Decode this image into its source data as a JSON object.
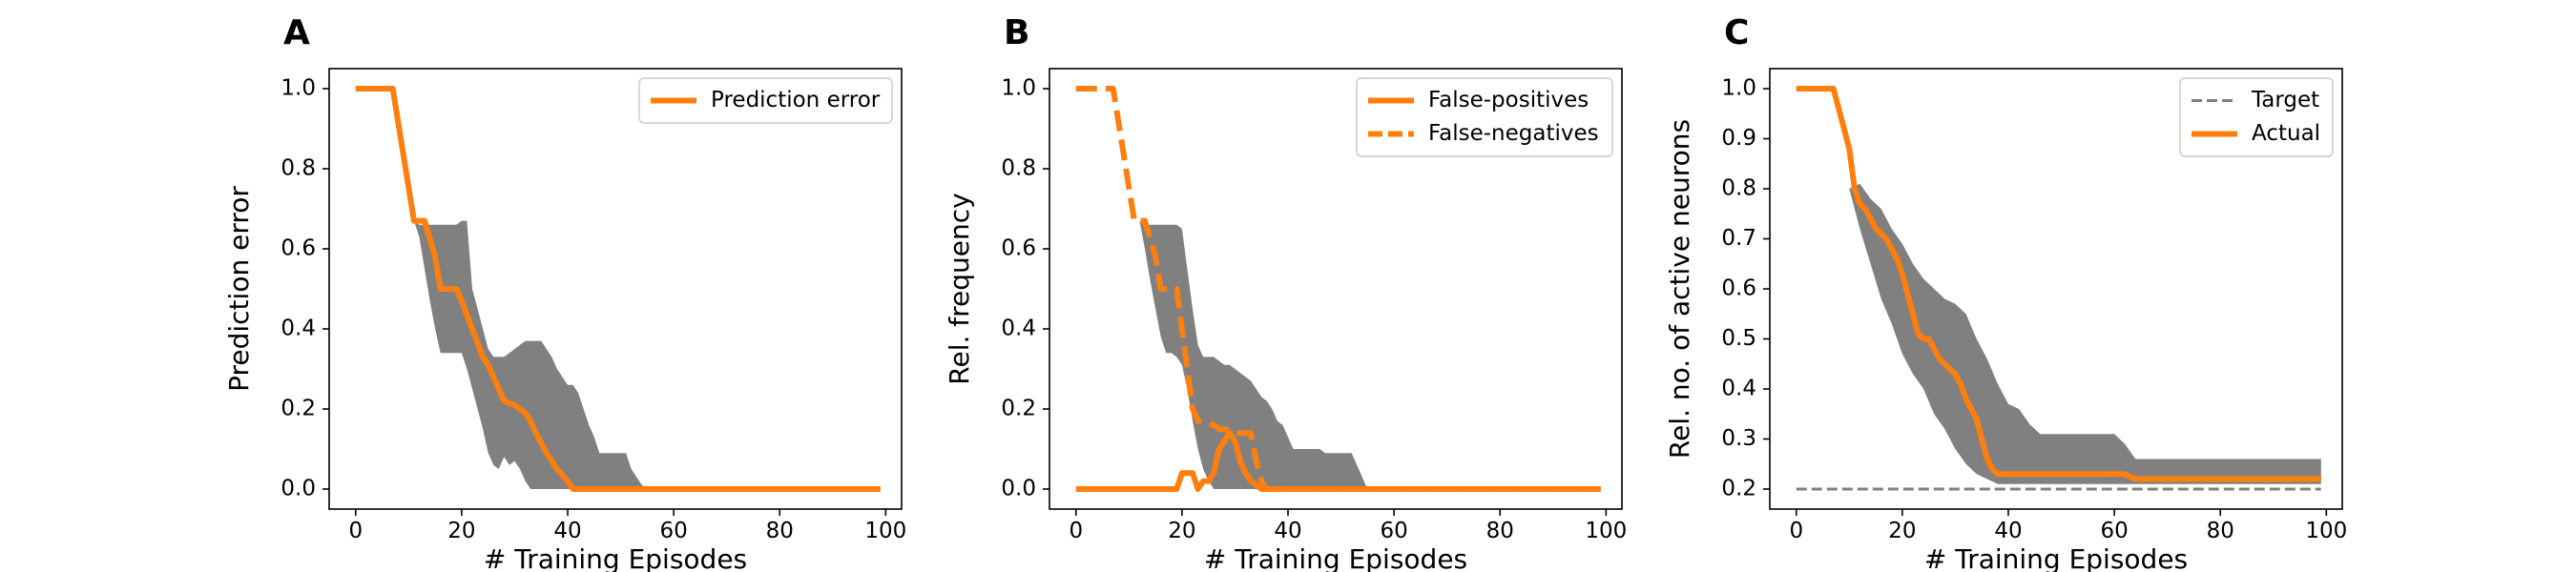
{
  "colors": {
    "accent": "#ff7f0e",
    "band": "#808080",
    "target": "#808080",
    "axis": "#000000"
  },
  "chart_data": [
    {
      "panel": "A",
      "type": "line",
      "xlabel": "# Training Episodes",
      "ylabel": "Prediction error",
      "xlim": [
        -5,
        103
      ],
      "ylim": [
        -0.05,
        1.05
      ],
      "xticks": [
        0,
        20,
        40,
        60,
        80,
        100
      ],
      "yticks": [
        0.0,
        0.2,
        0.4,
        0.6,
        0.8,
        1.0
      ],
      "ytick_labels": [
        "0.0",
        "0.2",
        "0.4",
        "0.6",
        "0.8",
        "1.0"
      ],
      "legend_position": "top-right",
      "band": {
        "x": [
          11,
          12,
          13,
          14,
          15,
          16,
          17,
          18,
          19,
          20,
          21,
          22,
          23,
          24,
          25,
          26,
          27,
          28,
          29,
          30,
          31,
          32,
          33,
          34,
          35,
          36,
          37,
          38,
          39,
          40,
          41,
          42,
          43,
          44,
          45,
          46,
          47,
          48,
          49,
          50,
          51,
          52,
          53,
          54,
          55
        ],
        "upper": [
          0.67,
          0.66,
          0.66,
          0.66,
          0.66,
          0.66,
          0.66,
          0.66,
          0.66,
          0.67,
          0.67,
          0.5,
          0.45,
          0.4,
          0.35,
          0.33,
          0.33,
          0.33,
          0.34,
          0.35,
          0.36,
          0.37,
          0.37,
          0.37,
          0.37,
          0.35,
          0.33,
          0.3,
          0.28,
          0.26,
          0.26,
          0.24,
          0.2,
          0.16,
          0.13,
          0.09,
          0.09,
          0.09,
          0.09,
          0.09,
          0.09,
          0.05,
          0.03,
          0.01,
          0.0
        ],
        "lower": [
          0.67,
          0.63,
          0.55,
          0.47,
          0.4,
          0.34,
          0.34,
          0.34,
          0.34,
          0.34,
          0.3,
          0.25,
          0.2,
          0.15,
          0.09,
          0.06,
          0.05,
          0.08,
          0.06,
          0.07,
          0.05,
          0.02,
          0.0,
          0.0,
          0.0,
          0.0,
          0.0,
          0.0,
          0.0,
          0.0,
          0.0,
          0.0,
          0.0,
          0.0,
          0.0,
          0.0,
          0.0,
          0.0,
          0.0,
          0.0,
          0.0,
          0.0,
          0.0,
          0.0,
          0.0
        ]
      },
      "series": [
        {
          "name": "Prediction error",
          "style": "solid",
          "x": [
            0,
            7,
            11,
            13,
            15,
            16,
            19,
            20,
            22,
            24,
            25,
            26,
            27,
            28,
            30,
            32,
            33,
            34,
            36,
            38,
            40,
            41,
            99
          ],
          "y": [
            1.0,
            1.0,
            0.67,
            0.67,
            0.58,
            0.5,
            0.5,
            0.47,
            0.4,
            0.33,
            0.31,
            0.28,
            0.25,
            0.22,
            0.21,
            0.19,
            0.17,
            0.14,
            0.09,
            0.05,
            0.02,
            0.0,
            0.0
          ]
        }
      ]
    },
    {
      "panel": "B",
      "type": "line",
      "xlabel": "# Training Episodes",
      "ylabel": "Rel. frequency",
      "xlim": [
        -5,
        103
      ],
      "ylim": [
        -0.05,
        1.05
      ],
      "xticks": [
        0,
        20,
        40,
        60,
        80,
        100
      ],
      "yticks": [
        0.0,
        0.2,
        0.4,
        0.6,
        0.8,
        1.0
      ],
      "ytick_labels": [
        "0.0",
        "0.2",
        "0.4",
        "0.6",
        "0.8",
        "1.0"
      ],
      "legend_position": "top-right",
      "band": {
        "x": [
          12,
          13,
          14,
          15,
          16,
          17,
          18,
          19,
          20,
          21,
          22,
          23,
          24,
          25,
          26,
          27,
          28,
          29,
          30,
          31,
          32,
          33,
          34,
          35,
          36,
          37,
          38,
          39,
          40,
          41,
          42,
          43,
          44,
          45,
          46,
          47,
          48,
          49,
          50,
          51,
          52,
          53,
          54,
          55
        ],
        "upper": [
          0.67,
          0.66,
          0.66,
          0.66,
          0.66,
          0.66,
          0.66,
          0.66,
          0.65,
          0.55,
          0.45,
          0.36,
          0.33,
          0.33,
          0.33,
          0.32,
          0.31,
          0.31,
          0.3,
          0.29,
          0.28,
          0.27,
          0.25,
          0.23,
          0.22,
          0.2,
          0.17,
          0.16,
          0.13,
          0.1,
          0.1,
          0.1,
          0.1,
          0.1,
          0.1,
          0.09,
          0.09,
          0.09,
          0.09,
          0.09,
          0.09,
          0.06,
          0.03,
          0.0
        ],
        "lower": [
          0.67,
          0.6,
          0.52,
          0.45,
          0.38,
          0.34,
          0.34,
          0.33,
          0.31,
          0.25,
          0.17,
          0.1,
          0.05,
          0.02,
          0.0,
          0.0,
          0.0,
          0.0,
          0.0,
          0.0,
          0.0,
          0.0,
          0.0,
          0.0,
          0.0,
          0.0,
          0.0,
          0.0,
          0.0,
          0.0,
          0.0,
          0.0,
          0.0,
          0.0,
          0.0,
          0.0,
          0.0,
          0.0,
          0.0,
          0.0,
          0.0,
          0.0,
          0.0,
          0.0
        ]
      },
      "series": [
        {
          "name": "False-positives",
          "style": "solid",
          "x": [
            0,
            19,
            20,
            22,
            23,
            24,
            25,
            26,
            27,
            28,
            29,
            30,
            31,
            32,
            33,
            34,
            35,
            99
          ],
          "y": [
            0.0,
            0.0,
            0.04,
            0.04,
            0.0,
            0.02,
            0.02,
            0.04,
            0.1,
            0.12,
            0.14,
            0.12,
            0.07,
            0.04,
            0.02,
            0.01,
            0.0,
            0.0
          ]
        },
        {
          "name": "False-negatives",
          "style": "dashed",
          "x": [
            0,
            7,
            11,
            13,
            15,
            16,
            19,
            20,
            21,
            22,
            23,
            24,
            26,
            27,
            28,
            30,
            32,
            33,
            34,
            35,
            36,
            37,
            99
          ],
          "y": [
            1.0,
            1.0,
            0.67,
            0.67,
            0.58,
            0.5,
            0.5,
            0.4,
            0.3,
            0.2,
            0.17,
            0.17,
            0.16,
            0.15,
            0.15,
            0.14,
            0.14,
            0.14,
            0.07,
            0.02,
            0.0,
            0.0,
            0.0
          ]
        }
      ]
    },
    {
      "panel": "C",
      "type": "line",
      "xlabel": "# Training Episodes",
      "ylabel": "Rel. no. of active neurons",
      "xlim": [
        -5,
        103
      ],
      "ylim": [
        0.16,
        1.04
      ],
      "xticks": [
        0,
        20,
        40,
        60,
        80,
        100
      ],
      "yticks": [
        0.2,
        0.3,
        0.4,
        0.5,
        0.6,
        0.7,
        0.8,
        0.9,
        1.0
      ],
      "ytick_labels": [
        "0.2",
        "0.3",
        "0.4",
        "0.5",
        "0.6",
        "0.7",
        "0.8",
        "0.9",
        "1.0"
      ],
      "legend_position": "top-right",
      "band": {
        "x": [
          10,
          12,
          14,
          16,
          18,
          20,
          22,
          24,
          26,
          28,
          30,
          32,
          34,
          36,
          38,
          40,
          42,
          44,
          46,
          48,
          50,
          55,
          60,
          62,
          64,
          66,
          70,
          80,
          90,
          99
        ],
        "upper": [
          0.8,
          0.81,
          0.78,
          0.76,
          0.72,
          0.69,
          0.65,
          0.62,
          0.6,
          0.58,
          0.57,
          0.55,
          0.5,
          0.46,
          0.41,
          0.37,
          0.36,
          0.33,
          0.31,
          0.31,
          0.31,
          0.31,
          0.31,
          0.29,
          0.26,
          0.26,
          0.26,
          0.26,
          0.26,
          0.26
        ],
        "lower": [
          0.8,
          0.72,
          0.65,
          0.58,
          0.53,
          0.47,
          0.43,
          0.4,
          0.35,
          0.32,
          0.28,
          0.25,
          0.23,
          0.22,
          0.21,
          0.21,
          0.21,
          0.21,
          0.21,
          0.21,
          0.21,
          0.21,
          0.21,
          0.21,
          0.21,
          0.21,
          0.21,
          0.21,
          0.21,
          0.21
        ]
      },
      "series": [
        {
          "name": "Target",
          "style": "dashed-gray",
          "x": [
            0,
            99
          ],
          "y": [
            0.2,
            0.2
          ]
        },
        {
          "name": "Actual",
          "style": "solid",
          "x": [
            0,
            7,
            10,
            11,
            12,
            13,
            14,
            15,
            16,
            17,
            18,
            19,
            20,
            21,
            22,
            23,
            24,
            25,
            26,
            27,
            28,
            29,
            30,
            31,
            32,
            33,
            34,
            35,
            36,
            37,
            38,
            39,
            40,
            41,
            42,
            50,
            60,
            62,
            64,
            70,
            80,
            99
          ],
          "y": [
            1.0,
            1.0,
            0.88,
            0.8,
            0.77,
            0.76,
            0.74,
            0.72,
            0.71,
            0.7,
            0.68,
            0.66,
            0.63,
            0.59,
            0.55,
            0.51,
            0.5,
            0.5,
            0.48,
            0.46,
            0.45,
            0.44,
            0.43,
            0.41,
            0.38,
            0.36,
            0.34,
            0.3,
            0.26,
            0.24,
            0.23,
            0.23,
            0.23,
            0.23,
            0.23,
            0.23,
            0.23,
            0.23,
            0.22,
            0.22,
            0.22,
            0.22
          ]
        }
      ]
    }
  ]
}
